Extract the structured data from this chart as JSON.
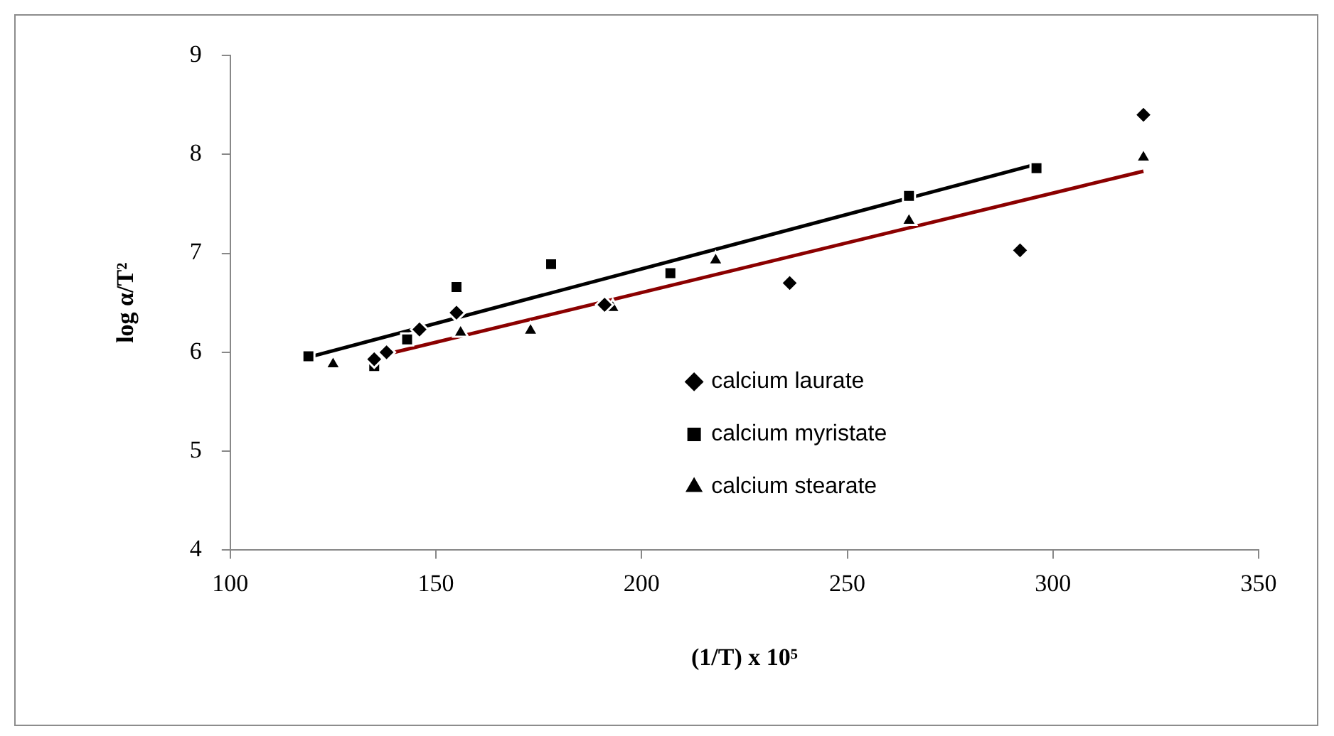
{
  "chart_data": {
    "type": "scatter",
    "xlabel": "(1/T) x 10⁵",
    "ylabel": "log α/T²",
    "xlim": [
      100,
      350
    ],
    "xticks": [
      100,
      150,
      200,
      250,
      300,
      350
    ],
    "ylim": [
      4,
      9
    ],
    "yticks": [
      4,
      5,
      6,
      7,
      8,
      9
    ],
    "grid": false,
    "legend": "bottom",
    "series": [
      {
        "name": "calcium laurate",
        "color": "#000000",
        "marker": "diamond",
        "x": [
          135,
          138,
          146,
          155,
          191,
          236,
          292,
          322
        ],
        "values": [
          5.93,
          6.0,
          6.23,
          6.4,
          6.48,
          6.7,
          7.03,
          8.4
        ]
      },
      {
        "name": "calcium myristate",
        "color": "#000000",
        "marker": "square",
        "x": [
          119,
          135,
          143,
          155,
          178,
          207,
          265,
          296
        ],
        "values": [
          5.96,
          5.86,
          6.13,
          6.66,
          6.89,
          6.8,
          7.58,
          7.86
        ]
      },
      {
        "name": "calcium stearate",
        "color": "#000000",
        "marker": "triangle",
        "x": [
          125,
          156,
          173,
          193,
          218,
          265,
          322
        ],
        "values": [
          5.88,
          6.2,
          6.22,
          6.45,
          6.93,
          7.33,
          7.97
        ]
      },
      {
        "type": "line",
        "color": "#000000",
        "marker": "none",
        "x": [
          119,
          296
        ],
        "values": [
          5.95,
          7.9
        ]
      },
      {
        "type": "line",
        "color": "#8b0000",
        "marker": "none",
        "x": [
          135,
          322
        ],
        "values": [
          5.95,
          7.83
        ]
      }
    ]
  }
}
